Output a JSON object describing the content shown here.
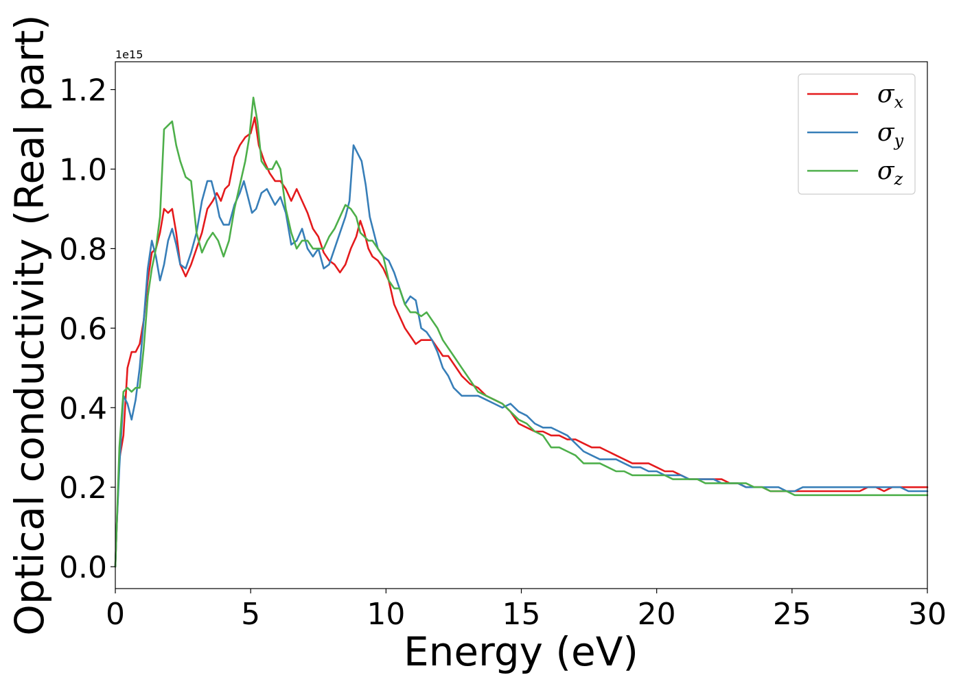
{
  "chart_data": {
    "type": "line",
    "xlabel": "Energy (eV)",
    "ylabel": "Optical conductivity (Real part)",
    "y_offset_text": "1e15",
    "xlim": [
      0,
      30
    ],
    "ylim": [
      -0.055,
      1.27
    ],
    "x_ticks": [
      0,
      5,
      10,
      15,
      20,
      25,
      30
    ],
    "x_tick_labels": [
      "0",
      "5",
      "10",
      "15",
      "20",
      "25",
      "30"
    ],
    "y_ticks": [
      0.0,
      0.2,
      0.4,
      0.6,
      0.8,
      1.0,
      1.2
    ],
    "y_tick_labels": [
      "0.0",
      "0.2",
      "0.4",
      "0.6",
      "0.8",
      "1.0",
      "1.2"
    ],
    "grid": false,
    "legend_position": "top-right",
    "series": [
      {
        "name": "σx",
        "legend_base": "σ",
        "legend_sub": "x",
        "color": "#e41a1c",
        "x": [
          0,
          0.05,
          0.15,
          0.3,
          0.45,
          0.6,
          0.75,
          0.9,
          1.05,
          1.2,
          1.35,
          1.5,
          1.65,
          1.8,
          1.95,
          2.1,
          2.25,
          2.4,
          2.6,
          2.8,
          3.0,
          3.2,
          3.4,
          3.6,
          3.75,
          3.9,
          4.05,
          4.2,
          4.4,
          4.6,
          4.8,
          5.0,
          5.15,
          5.3,
          5.5,
          5.7,
          5.9,
          6.1,
          6.3,
          6.5,
          6.7,
          6.9,
          7.1,
          7.3,
          7.5,
          7.7,
          7.9,
          8.1,
          8.3,
          8.5,
          8.7,
          8.9,
          9.05,
          9.2,
          9.35,
          9.5,
          9.7,
          9.9,
          10.1,
          10.3,
          10.5,
          10.7,
          10.9,
          11.1,
          11.3,
          11.5,
          11.7,
          11.9,
          12.1,
          12.3,
          12.5,
          12.8,
          13.1,
          13.4,
          13.7,
          14.0,
          14.3,
          14.6,
          14.9,
          15.2,
          15.5,
          15.8,
          16.1,
          16.4,
          16.7,
          17.0,
          17.3,
          17.6,
          17.9,
          18.2,
          18.5,
          18.8,
          19.1,
          19.4,
          19.7,
          20.0,
          20.3,
          20.6,
          20.9,
          21.2,
          21.5,
          21.8,
          22.1,
          22.4,
          22.7,
          23.0,
          23.3,
          23.6,
          23.9,
          24.2,
          24.5,
          24.8,
          25.1,
          25.4,
          25.7,
          26.0,
          26.3,
          26.6,
          26.9,
          27.2,
          27.5,
          27.8,
          28.1,
          28.4,
          28.7,
          29.0,
          29.3,
          29.6,
          30.0
        ],
        "y": [
          0.0,
          0.1,
          0.27,
          0.33,
          0.5,
          0.54,
          0.54,
          0.56,
          0.62,
          0.72,
          0.79,
          0.8,
          0.84,
          0.9,
          0.89,
          0.9,
          0.84,
          0.76,
          0.73,
          0.76,
          0.8,
          0.84,
          0.9,
          0.92,
          0.94,
          0.92,
          0.95,
          0.96,
          1.03,
          1.06,
          1.08,
          1.09,
          1.13,
          1.06,
          1.02,
          0.99,
          0.97,
          0.97,
          0.95,
          0.92,
          0.95,
          0.92,
          0.89,
          0.85,
          0.83,
          0.79,
          0.77,
          0.76,
          0.74,
          0.76,
          0.8,
          0.83,
          0.87,
          0.84,
          0.8,
          0.78,
          0.77,
          0.75,
          0.72,
          0.66,
          0.63,
          0.6,
          0.58,
          0.56,
          0.57,
          0.57,
          0.57,
          0.55,
          0.53,
          0.53,
          0.51,
          0.48,
          0.46,
          0.45,
          0.43,
          0.42,
          0.41,
          0.39,
          0.36,
          0.35,
          0.34,
          0.34,
          0.33,
          0.33,
          0.32,
          0.32,
          0.31,
          0.3,
          0.3,
          0.29,
          0.28,
          0.27,
          0.26,
          0.26,
          0.26,
          0.25,
          0.24,
          0.24,
          0.23,
          0.22,
          0.22,
          0.22,
          0.22,
          0.22,
          0.21,
          0.21,
          0.2,
          0.2,
          0.2,
          0.19,
          0.19,
          0.19,
          0.19,
          0.19,
          0.19,
          0.19,
          0.19,
          0.19,
          0.19,
          0.19,
          0.19,
          0.2,
          0.2,
          0.19,
          0.2,
          0.2,
          0.2,
          0.2,
          0.2
        ]
      },
      {
        "name": "σy",
        "legend_base": "σ",
        "legend_sub": "y",
        "color": "#377eb8",
        "x": [
          0,
          0.05,
          0.15,
          0.3,
          0.45,
          0.6,
          0.75,
          0.9,
          1.05,
          1.2,
          1.35,
          1.5,
          1.65,
          1.8,
          1.95,
          2.1,
          2.25,
          2.4,
          2.6,
          2.8,
          3.0,
          3.2,
          3.4,
          3.55,
          3.7,
          3.85,
          4.0,
          4.2,
          4.4,
          4.6,
          4.75,
          4.9,
          5.05,
          5.2,
          5.4,
          5.6,
          5.75,
          5.9,
          6.1,
          6.3,
          6.5,
          6.7,
          6.9,
          7.1,
          7.3,
          7.5,
          7.7,
          7.9,
          8.1,
          8.3,
          8.5,
          8.65,
          8.8,
          8.95,
          9.1,
          9.25,
          9.4,
          9.55,
          9.7,
          9.9,
          10.1,
          10.3,
          10.5,
          10.7,
          10.9,
          11.1,
          11.3,
          11.5,
          11.7,
          11.9,
          12.1,
          12.3,
          12.5,
          12.8,
          13.1,
          13.4,
          13.7,
          14.0,
          14.3,
          14.6,
          14.9,
          15.2,
          15.5,
          15.8,
          16.1,
          16.4,
          16.7,
          17.0,
          17.3,
          17.6,
          17.9,
          18.2,
          18.5,
          18.8,
          19.1,
          19.4,
          19.7,
          20.0,
          20.3,
          20.6,
          20.9,
          21.2,
          21.5,
          21.8,
          22.1,
          22.4,
          22.7,
          23.0,
          23.3,
          23.6,
          23.9,
          24.2,
          24.5,
          24.8,
          25.1,
          25.4,
          25.7,
          26.0,
          26.3,
          26.6,
          26.9,
          27.2,
          27.5,
          27.8,
          28.1,
          28.4,
          28.7,
          29.0,
          29.3,
          29.6,
          30.0
        ],
        "y": [
          0.0,
          0.1,
          0.25,
          0.43,
          0.41,
          0.37,
          0.42,
          0.5,
          0.62,
          0.75,
          0.82,
          0.78,
          0.72,
          0.76,
          0.82,
          0.85,
          0.81,
          0.76,
          0.75,
          0.79,
          0.84,
          0.92,
          0.97,
          0.97,
          0.93,
          0.88,
          0.86,
          0.86,
          0.91,
          0.94,
          0.97,
          0.93,
          0.89,
          0.9,
          0.94,
          0.95,
          0.93,
          0.91,
          0.93,
          0.89,
          0.81,
          0.82,
          0.85,
          0.8,
          0.78,
          0.8,
          0.75,
          0.76,
          0.8,
          0.84,
          0.88,
          0.92,
          1.06,
          1.04,
          1.02,
          0.96,
          0.88,
          0.84,
          0.8,
          0.78,
          0.77,
          0.74,
          0.7,
          0.66,
          0.68,
          0.67,
          0.6,
          0.59,
          0.57,
          0.54,
          0.5,
          0.48,
          0.45,
          0.43,
          0.43,
          0.43,
          0.42,
          0.41,
          0.4,
          0.41,
          0.39,
          0.38,
          0.36,
          0.35,
          0.35,
          0.34,
          0.33,
          0.31,
          0.29,
          0.28,
          0.27,
          0.27,
          0.27,
          0.26,
          0.25,
          0.25,
          0.24,
          0.24,
          0.23,
          0.23,
          0.23,
          0.22,
          0.22,
          0.22,
          0.22,
          0.21,
          0.21,
          0.21,
          0.2,
          0.2,
          0.2,
          0.2,
          0.2,
          0.19,
          0.19,
          0.2,
          0.2,
          0.2,
          0.2,
          0.2,
          0.2,
          0.2,
          0.2,
          0.2,
          0.2,
          0.2,
          0.2,
          0.2,
          0.19,
          0.19,
          0.19
        ]
      },
      {
        "name": "σz",
        "legend_base": "σ",
        "legend_sub": "z",
        "color": "#4daf4a",
        "x": [
          0,
          0.05,
          0.15,
          0.3,
          0.45,
          0.6,
          0.75,
          0.9,
          1.05,
          1.2,
          1.35,
          1.5,
          1.65,
          1.8,
          1.95,
          2.1,
          2.25,
          2.4,
          2.6,
          2.8,
          3.0,
          3.2,
          3.4,
          3.6,
          3.8,
          4.0,
          4.2,
          4.4,
          4.6,
          4.8,
          4.95,
          5.1,
          5.25,
          5.4,
          5.6,
          5.8,
          5.95,
          6.1,
          6.3,
          6.5,
          6.7,
          6.9,
          7.1,
          7.3,
          7.5,
          7.7,
          7.9,
          8.1,
          8.3,
          8.5,
          8.7,
          8.9,
          9.05,
          9.2,
          9.35,
          9.5,
          9.7,
          9.9,
          10.1,
          10.3,
          10.5,
          10.7,
          10.9,
          11.1,
          11.3,
          11.5,
          11.7,
          11.9,
          12.1,
          12.3,
          12.5,
          12.8,
          13.1,
          13.4,
          13.7,
          14.0,
          14.3,
          14.6,
          14.9,
          15.2,
          15.5,
          15.8,
          16.1,
          16.4,
          16.7,
          17.0,
          17.3,
          17.6,
          17.9,
          18.2,
          18.5,
          18.8,
          19.1,
          19.4,
          19.7,
          20.0,
          20.3,
          20.6,
          20.9,
          21.2,
          21.5,
          21.8,
          22.1,
          22.4,
          22.7,
          23.0,
          23.3,
          23.6,
          23.9,
          24.2,
          24.5,
          24.8,
          25.1,
          25.4,
          25.7,
          26.0,
          26.3,
          26.6,
          26.9,
          27.2,
          27.5,
          27.8,
          28.1,
          28.4,
          28.7,
          29.0,
          29.3,
          29.6,
          30.0
        ],
        "y": [
          0.0,
          0.1,
          0.3,
          0.44,
          0.45,
          0.44,
          0.45,
          0.45,
          0.55,
          0.68,
          0.75,
          0.8,
          0.88,
          1.1,
          1.11,
          1.12,
          1.06,
          1.02,
          0.98,
          0.97,
          0.84,
          0.79,
          0.82,
          0.84,
          0.82,
          0.78,
          0.82,
          0.9,
          0.96,
          1.02,
          1.08,
          1.18,
          1.12,
          1.02,
          1.0,
          1.0,
          1.02,
          1.0,
          0.9,
          0.84,
          0.8,
          0.82,
          0.82,
          0.8,
          0.8,
          0.8,
          0.83,
          0.85,
          0.88,
          0.91,
          0.9,
          0.88,
          0.84,
          0.83,
          0.82,
          0.82,
          0.8,
          0.78,
          0.72,
          0.7,
          0.7,
          0.66,
          0.64,
          0.64,
          0.63,
          0.64,
          0.62,
          0.6,
          0.57,
          0.55,
          0.53,
          0.5,
          0.47,
          0.44,
          0.43,
          0.42,
          0.41,
          0.39,
          0.37,
          0.36,
          0.34,
          0.33,
          0.3,
          0.3,
          0.29,
          0.28,
          0.26,
          0.26,
          0.26,
          0.25,
          0.24,
          0.24,
          0.23,
          0.23,
          0.23,
          0.23,
          0.23,
          0.22,
          0.22,
          0.22,
          0.22,
          0.21,
          0.21,
          0.21,
          0.21,
          0.21,
          0.21,
          0.2,
          0.2,
          0.19,
          0.19,
          0.19,
          0.18,
          0.18,
          0.18,
          0.18,
          0.18,
          0.18,
          0.18,
          0.18,
          0.18,
          0.18,
          0.18,
          0.18,
          0.18,
          0.18,
          0.18,
          0.18,
          0.18
        ]
      }
    ]
  }
}
